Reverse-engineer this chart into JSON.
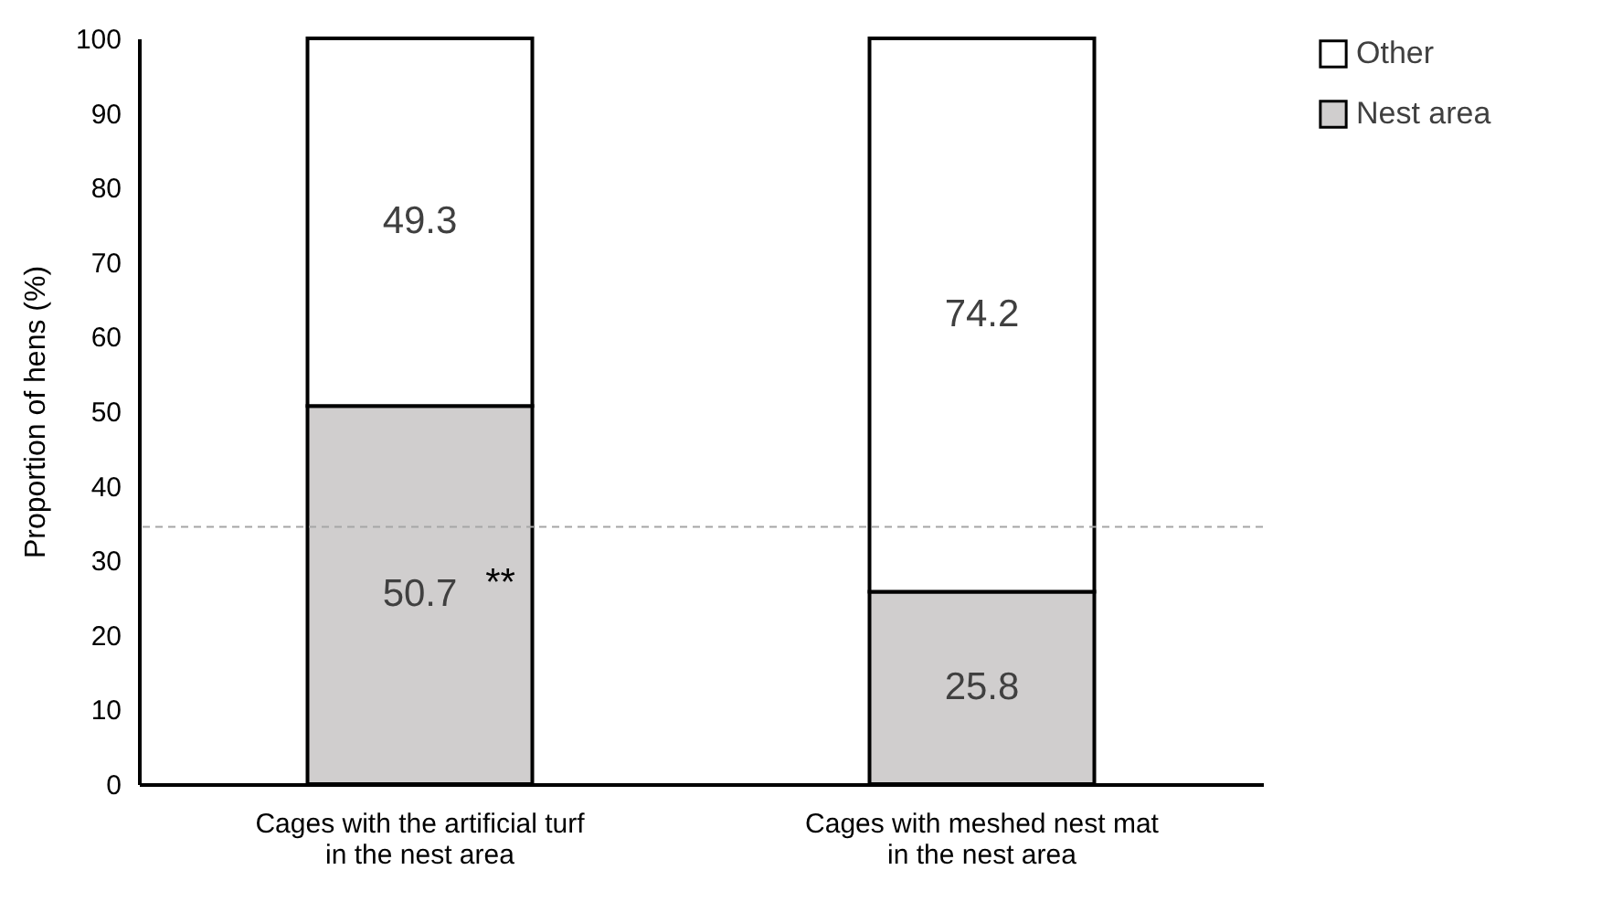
{
  "chart_data": {
    "type": "bar",
    "stacked": true,
    "ylabel": "Proportion of hens (%)",
    "categories": [
      "Cages with the artificial turf in the nest area",
      "Cages with meshed nest mat in the nest area"
    ],
    "series": [
      {
        "name": "Nest area",
        "color": "#d0cece",
        "values": [
          50.7,
          25.8
        ]
      },
      {
        "name": "Other",
        "color": "#ffffff",
        "values": [
          49.3,
          74.2
        ]
      }
    ],
    "ylim": [
      0,
      100
    ],
    "yticks": [
      0,
      10,
      20,
      30,
      40,
      50,
      60,
      70,
      80,
      90,
      100
    ],
    "data_labels": true,
    "grid": false,
    "legend": "right",
    "ref_lines": [
      {
        "axis": "y",
        "value": 34.5,
        "label": null,
        "color": "#a6a6a6",
        "line_style": "dashed"
      }
    ],
    "annotations": [
      "**"
    ]
  }
}
